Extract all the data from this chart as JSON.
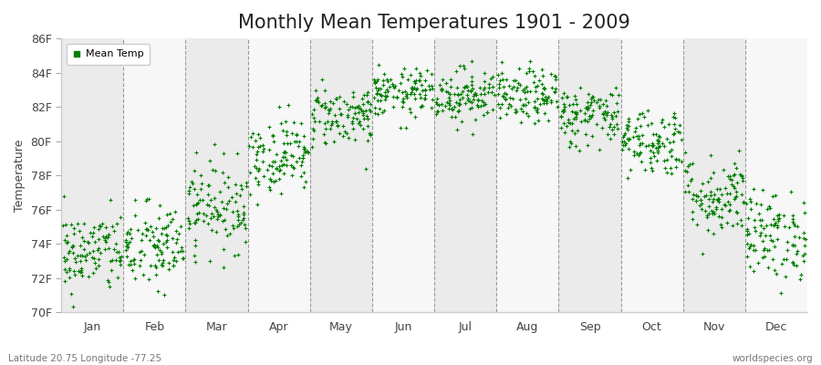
{
  "title": "Monthly Mean Temperatures 1901 - 2009",
  "ylabel": "Temperature",
  "xlabel_labels": [
    "Jan",
    "Feb",
    "Mar",
    "Apr",
    "May",
    "Jun",
    "Jul",
    "Aug",
    "Sep",
    "Oct",
    "Nov",
    "Dec"
  ],
  "ytick_labels": [
    "70F",
    "72F",
    "74F",
    "76F",
    "78F",
    "80F",
    "82F",
    "84F",
    "86F"
  ],
  "ytick_values": [
    70,
    72,
    74,
    76,
    78,
    80,
    82,
    84,
    86
  ],
  "ylim": [
    70,
    86
  ],
  "dot_color": "#008000",
  "dot_size": 9,
  "background_color": "#ffffff",
  "legend_label": "Mean Temp",
  "subtitle": "Latitude 20.75 Longitude -77.25",
  "watermark": "worldspecies.org",
  "title_fontsize": 15,
  "label_fontsize": 9,
  "num_years": 109,
  "seed": 42,
  "monthly_means": [
    73.5,
    73.8,
    76.2,
    79.2,
    81.5,
    82.8,
    82.7,
    82.6,
    81.5,
    80.0,
    76.8,
    74.5
  ],
  "monthly_stds": [
    1.2,
    1.3,
    1.3,
    1.1,
    0.9,
    0.7,
    0.8,
    0.8,
    0.9,
    1.0,
    1.2,
    1.3
  ],
  "band_colors": [
    "#ebebeb",
    "#f7f7f7"
  ]
}
